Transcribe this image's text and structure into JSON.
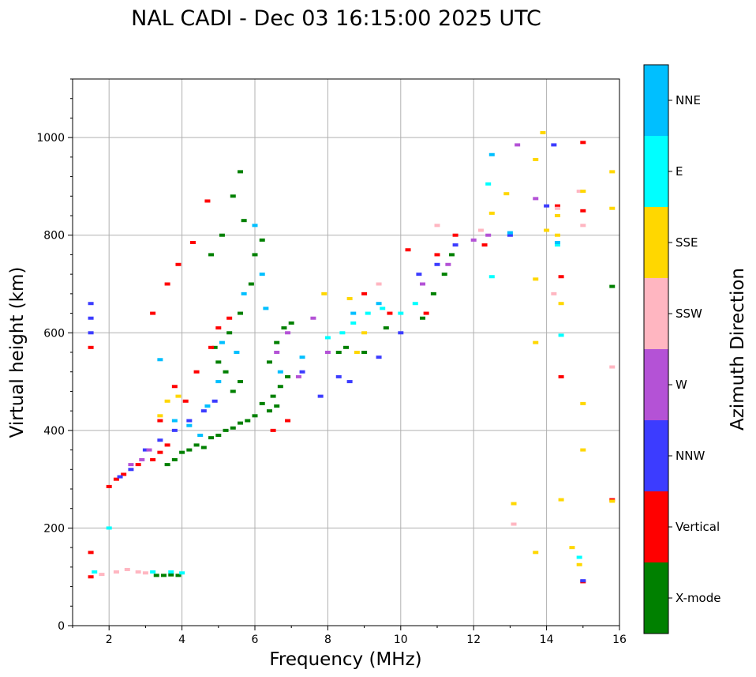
{
  "chart_data": {
    "type": "scatter",
    "title": "NAL CADI - Dec 03 16:15:00 2025 UTC",
    "xlabel": "Frequency (MHz)",
    "ylabel": "Virtual height (km)",
    "xlim": [
      1,
      16
    ],
    "ylim": [
      0,
      1120
    ],
    "xticks": [
      2,
      4,
      6,
      8,
      10,
      12,
      14,
      16
    ],
    "yticks": [
      0,
      200,
      400,
      600,
      800,
      1000
    ],
    "grid": true,
    "colorbar": {
      "label": "Azimuth Direction",
      "categories": [
        "X-mode",
        "Vertical",
        "NNW",
        "W",
        "SSW",
        "SSE",
        "E",
        "NNE"
      ],
      "colors": [
        "#008000",
        "#ff0000",
        "#3c3cff",
        "#b452d6",
        "#ffb6c1",
        "#ffd700",
        "#00ffff",
        "#00bfff"
      ]
    },
    "series": [
      {
        "name": "X-mode",
        "points": [
          [
            3.3,
            103
          ],
          [
            3.5,
            103
          ],
          [
            3.7,
            104
          ],
          [
            3.9,
            103
          ],
          [
            3.6,
            330
          ],
          [
            3.8,
            340
          ],
          [
            4.0,
            355
          ],
          [
            4.2,
            360
          ],
          [
            4.4,
            370
          ],
          [
            4.6,
            365
          ],
          [
            4.8,
            385
          ],
          [
            5.0,
            390
          ],
          [
            5.2,
            400
          ],
          [
            5.4,
            405
          ],
          [
            5.6,
            415
          ],
          [
            5.8,
            420
          ],
          [
            6.0,
            430
          ],
          [
            6.2,
            455
          ],
          [
            6.4,
            440
          ],
          [
            6.6,
            450
          ],
          [
            6.5,
            470
          ],
          [
            6.7,
            490
          ],
          [
            6.9,
            510
          ],
          [
            5.4,
            480
          ],
          [
            5.6,
            500
          ],
          [
            5.2,
            520
          ],
          [
            5.0,
            540
          ],
          [
            4.9,
            570
          ],
          [
            5.3,
            600
          ],
          [
            5.6,
            640
          ],
          [
            5.9,
            700
          ],
          [
            6.0,
            760
          ],
          [
            6.2,
            790
          ],
          [
            5.7,
            830
          ],
          [
            5.4,
            880
          ],
          [
            5.6,
            930
          ],
          [
            5.1,
            800
          ],
          [
            4.8,
            760
          ],
          [
            6.4,
            540
          ],
          [
            6.6,
            580
          ],
          [
            6.8,
            610
          ],
          [
            7.0,
            620
          ],
          [
            8.3,
            560
          ],
          [
            8.5,
            570
          ],
          [
            9.0,
            560
          ],
          [
            9.6,
            610
          ],
          [
            10.6,
            630
          ],
          [
            10.9,
            680
          ],
          [
            11.2,
            720
          ],
          [
            11.4,
            760
          ],
          [
            15.8,
            695
          ]
        ]
      },
      {
        "name": "Vertical",
        "points": [
          [
            1.5,
            100
          ],
          [
            1.5,
            150
          ],
          [
            1.5,
            570
          ],
          [
            2.0,
            285
          ],
          [
            2.2,
            300
          ],
          [
            2.4,
            310
          ],
          [
            2.8,
            330
          ],
          [
            3.2,
            340
          ],
          [
            3.4,
            355
          ],
          [
            3.6,
            370
          ],
          [
            3.2,
            640
          ],
          [
            3.6,
            700
          ],
          [
            3.9,
            740
          ],
          [
            4.3,
            785
          ],
          [
            4.7,
            870
          ],
          [
            3.4,
            420
          ],
          [
            3.8,
            490
          ],
          [
            4.1,
            460
          ],
          [
            4.4,
            520
          ],
          [
            4.8,
            570
          ],
          [
            5.0,
            610
          ],
          [
            5.3,
            630
          ],
          [
            6.5,
            400
          ],
          [
            6.9,
            420
          ],
          [
            9.0,
            680
          ],
          [
            9.7,
            640
          ],
          [
            10.2,
            770
          ],
          [
            10.7,
            640
          ],
          [
            11.0,
            760
          ],
          [
            11.5,
            800
          ],
          [
            12.3,
            780
          ],
          [
            14.3,
            860
          ],
          [
            14.4,
            715
          ],
          [
            14.4,
            510
          ],
          [
            15.0,
            850
          ],
          [
            15.0,
            990
          ],
          [
            15.0,
            90
          ],
          [
            15.8,
            258
          ]
        ]
      },
      {
        "name": "NNW",
        "points": [
          [
            1.5,
            600
          ],
          [
            1.5,
            660
          ],
          [
            1.5,
            630
          ],
          [
            2.3,
            305
          ],
          [
            2.6,
            320
          ],
          [
            3.0,
            360
          ],
          [
            3.4,
            380
          ],
          [
            3.8,
            400
          ],
          [
            4.2,
            420
          ],
          [
            4.6,
            440
          ],
          [
            4.9,
            460
          ],
          [
            7.3,
            520
          ],
          [
            7.8,
            470
          ],
          [
            8.3,
            510
          ],
          [
            8.6,
            500
          ],
          [
            9.4,
            550
          ],
          [
            10.0,
            600
          ],
          [
            10.5,
            720
          ],
          [
            11.0,
            740
          ],
          [
            11.5,
            780
          ],
          [
            13.0,
            800
          ],
          [
            14.0,
            860
          ],
          [
            14.2,
            985
          ],
          [
            15.0,
            92
          ]
        ]
      },
      {
        "name": "W",
        "points": [
          [
            2.6,
            330
          ],
          [
            2.9,
            340
          ],
          [
            3.1,
            360
          ],
          [
            6.6,
            560
          ],
          [
            6.9,
            600
          ],
          [
            7.2,
            510
          ],
          [
            7.6,
            630
          ],
          [
            8.0,
            560
          ],
          [
            10.6,
            700
          ],
          [
            11.3,
            740
          ],
          [
            12.0,
            790
          ],
          [
            12.4,
            800
          ],
          [
            13.2,
            985
          ],
          [
            13.7,
            875
          ]
        ]
      },
      {
        "name": "SSW",
        "points": [
          [
            1.8,
            105
          ],
          [
            2.2,
            110
          ],
          [
            2.5,
            115
          ],
          [
            2.8,
            110
          ],
          [
            3.0,
            108
          ],
          [
            9.4,
            700
          ],
          [
            11.0,
            820
          ],
          [
            12.2,
            810
          ],
          [
            13.1,
            208
          ],
          [
            14.2,
            680
          ],
          [
            14.3,
            855
          ],
          [
            14.9,
            890
          ],
          [
            15.0,
            820
          ],
          [
            15.8,
            530
          ]
        ]
      },
      {
        "name": "SSE",
        "points": [
          [
            3.4,
            430
          ],
          [
            3.6,
            460
          ],
          [
            3.9,
            470
          ],
          [
            7.9,
            680
          ],
          [
            8.6,
            670
          ],
          [
            8.8,
            560
          ],
          [
            9.0,
            600
          ],
          [
            12.5,
            845
          ],
          [
            12.9,
            885
          ],
          [
            13.1,
            250
          ],
          [
            13.7,
            955
          ],
          [
            13.7,
            710
          ],
          [
            13.7,
            580
          ],
          [
            13.7,
            150
          ],
          [
            13.9,
            1010
          ],
          [
            14.0,
            810
          ],
          [
            14.3,
            800
          ],
          [
            14.3,
            840
          ],
          [
            14.4,
            660
          ],
          [
            14.4,
            258
          ],
          [
            14.7,
            160
          ],
          [
            14.9,
            125
          ],
          [
            15.0,
            455
          ],
          [
            15.0,
            360
          ],
          [
            15.0,
            890
          ],
          [
            15.8,
            855
          ],
          [
            15.8,
            930
          ],
          [
            15.8,
            255
          ]
        ]
      },
      {
        "name": "E",
        "points": [
          [
            1.6,
            110
          ],
          [
            2.0,
            200
          ],
          [
            3.2,
            110
          ],
          [
            3.7,
            110
          ],
          [
            4.0,
            108
          ],
          [
            8.0,
            590
          ],
          [
            8.4,
            600
          ],
          [
            8.7,
            620
          ],
          [
            9.1,
            640
          ],
          [
            9.5,
            650
          ],
          [
            10.0,
            640
          ],
          [
            10.4,
            660
          ],
          [
            12.4,
            905
          ],
          [
            12.5,
            715
          ],
          [
            14.3,
            780
          ],
          [
            14.4,
            595
          ],
          [
            14.9,
            140
          ]
        ]
      },
      {
        "name": "NNE",
        "points": [
          [
            3.4,
            545
          ],
          [
            3.8,
            420
          ],
          [
            4.2,
            410
          ],
          [
            4.5,
            390
          ],
          [
            4.7,
            450
          ],
          [
            5.0,
            500
          ],
          [
            5.1,
            580
          ],
          [
            5.5,
            560
          ],
          [
            5.7,
            680
          ],
          [
            6.0,
            820
          ],
          [
            6.2,
            720
          ],
          [
            6.3,
            650
          ],
          [
            6.7,
            520
          ],
          [
            7.3,
            550
          ],
          [
            8.7,
            640
          ],
          [
            9.4,
            660
          ],
          [
            12.5,
            965
          ],
          [
            13.0,
            805
          ],
          [
            14.3,
            785
          ]
        ]
      }
    ]
  }
}
